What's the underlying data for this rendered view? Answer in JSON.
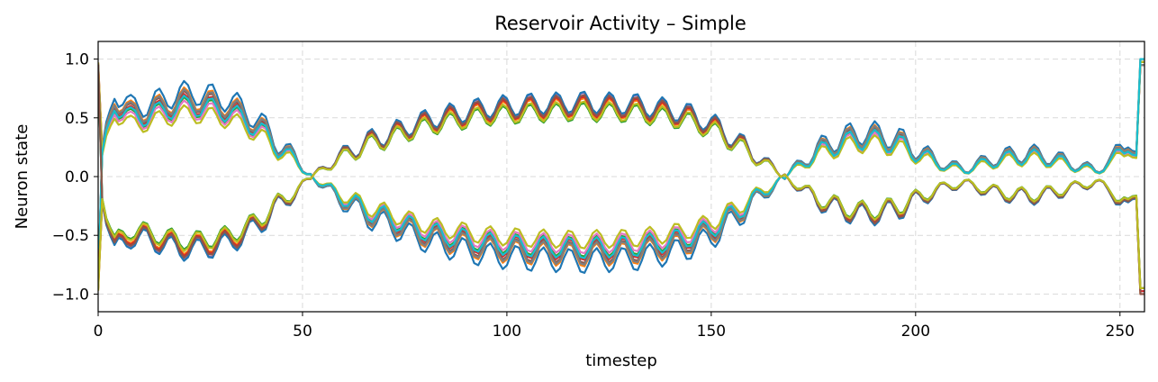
{
  "chart_data": {
    "type": "line",
    "title": "Reservoir Activity – Simple",
    "xlabel": "timestep",
    "ylabel": "Neuron state",
    "xlim": [
      0,
      256
    ],
    "ylim": [
      -1.15,
      1.15
    ],
    "x_ticks": [
      0,
      50,
      100,
      150,
      200,
      250
    ],
    "x_tick_labels": [
      "0",
      "50",
      "100",
      "150",
      "200",
      "250"
    ],
    "y_ticks": [
      1.0,
      0.5,
      0.0,
      -0.5,
      -1.0
    ],
    "y_tick_labels": [
      "1.0",
      "0.5",
      "0.0",
      "−0.5",
      "−1.0"
    ],
    "grid": true,
    "legend": "none",
    "x": [
      0,
      4,
      8,
      12,
      16,
      20,
      24,
      28,
      32,
      36,
      40,
      44,
      48,
      52,
      56,
      60,
      64,
      68,
      72,
      76,
      80,
      84,
      88,
      92,
      96,
      100,
      104,
      108,
      112,
      116,
      120,
      124,
      128,
      132,
      136,
      140,
      144,
      148,
      152,
      156,
      160,
      164,
      168,
      172,
      176,
      180,
      184,
      188,
      192,
      196,
      200,
      204,
      208,
      212,
      216,
      220,
      224,
      228,
      232,
      236,
      240,
      244,
      248,
      252,
      256
    ],
    "envelope": [
      0.0,
      0.62,
      0.5,
      0.52,
      0.56,
      0.6,
      0.6,
      0.58,
      0.55,
      0.48,
      0.38,
      0.25,
      0.14,
      0.02,
      -0.1,
      -0.18,
      -0.26,
      -0.32,
      -0.36,
      -0.42,
      -0.46,
      -0.5,
      -0.52,
      -0.55,
      -0.57,
      -0.58,
      -0.59,
      -0.6,
      -0.6,
      -0.61,
      -0.61,
      -0.6,
      -0.6,
      -0.59,
      -0.57,
      -0.55,
      -0.52,
      -0.47,
      -0.4,
      -0.3,
      -0.2,
      -0.1,
      0.0,
      0.1,
      0.2,
      0.26,
      0.3,
      0.32,
      0.3,
      0.27,
      0.2,
      0.14,
      0.08,
      0.06,
      0.1,
      0.14,
      0.16,
      0.17,
      0.15,
      0.12,
      0.08,
      0.05,
      0.12,
      0.3,
      0.0
    ],
    "oscillation": {
      "period_timesteps": 6.5,
      "amplitude": 0.09
    },
    "series": [
      {
        "color": "#1f77b4",
        "gain": 1.18,
        "sign": 1
      },
      {
        "color": "#ff7f0e",
        "gain": 1.1,
        "sign": 1
      },
      {
        "color": "#2ca02c",
        "gain": 0.98,
        "sign": 1
      },
      {
        "color": "#d62728",
        "gain": 1.02,
        "sign": 1
      },
      {
        "color": "#8c564b",
        "gain": 1.06,
        "sign": 1
      },
      {
        "color": "#e377c2",
        "gain": 0.94,
        "sign": 1
      },
      {
        "color": "#7f7f7f",
        "gain": 1.08,
        "sign": 1
      },
      {
        "color": "#bcbd22",
        "gain": 0.88,
        "sign": 1
      },
      {
        "color": "#17becf",
        "gain": 1.0,
        "sign": 1
      },
      {
        "color": "#9467bd",
        "gain": 1.03,
        "sign": -1
      },
      {
        "color": "#1f77b4",
        "gain": 1.04,
        "sign": -1
      },
      {
        "color": "#ff7f0e",
        "gain": 0.96,
        "sign": -1
      },
      {
        "color": "#2ca02c",
        "gain": 0.9,
        "sign": -1
      },
      {
        "color": "#d62728",
        "gain": 0.98,
        "sign": -1
      },
      {
        "color": "#8c564b",
        "gain": 1.0,
        "sign": -1
      },
      {
        "color": "#bcbd22",
        "gain": 0.92,
        "sign": -1
      }
    ]
  }
}
